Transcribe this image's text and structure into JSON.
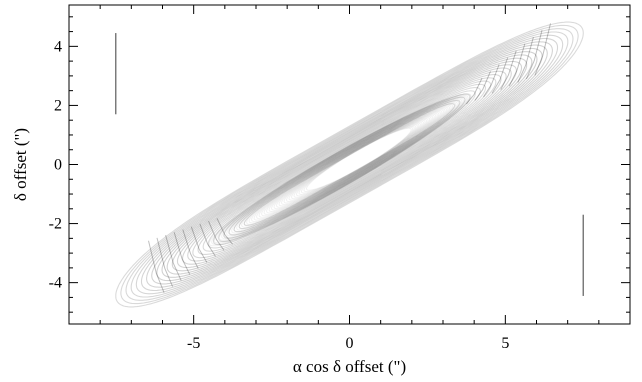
{
  "chart_data": {
    "type": "line",
    "title": "",
    "xlabel": "α cos δ offset (\")",
    "ylabel": "δ offset (\")",
    "xlim": [
      -9,
      9
    ],
    "ylim": [
      -5.4,
      5.4
    ],
    "x_ticks": [
      -5,
      0,
      5
    ],
    "y_ticks": [
      -4,
      -2,
      0,
      2,
      4
    ],
    "grid": false,
    "legend": "none",
    "trail_color": "#000000",
    "series": [
      {
        "description_key": "ellipse_family",
        "center": [
          0,
          0
        ],
        "outer_extent": {
          "x": [
            -7.6,
            7.6
          ],
          "y": [
            -4.5,
            4.5
          ]
        },
        "loops": [
          {
            "x_amp": 7.5,
            "y_amp": 4.45,
            "width": 2.6
          },
          {
            "x_amp": 6.2,
            "y_amp": 3.6,
            "width": 2.2
          },
          {
            "x_amp": 5.2,
            "y_amp": 3.05,
            "width": 1.9
          },
          {
            "x_amp": 4.4,
            "y_amp": 2.6,
            "width": 1.6
          },
          {
            "x_amp": 3.8,
            "y_amp": 2.25,
            "width": 1.4
          }
        ]
      }
    ]
  }
}
